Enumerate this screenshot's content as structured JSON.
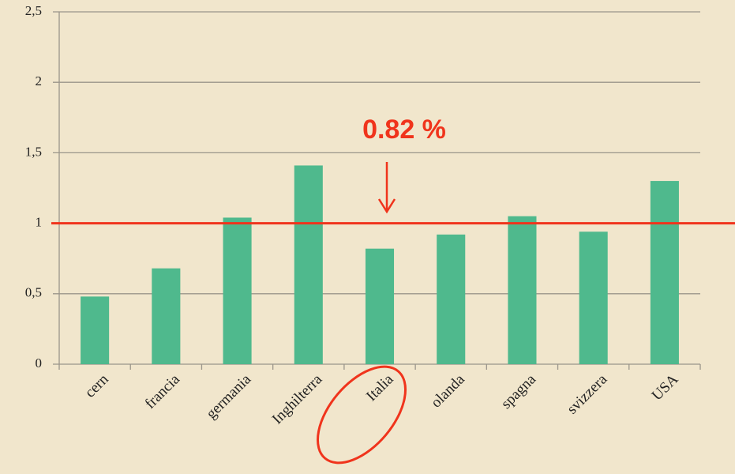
{
  "chart_data": {
    "type": "bar",
    "categories": [
      "cern",
      "francia",
      "germania",
      "Inghilterra",
      "Italia",
      "olanda",
      "spagna",
      "svizzera",
      "USA"
    ],
    "values": [
      0.48,
      0.68,
      1.04,
      1.41,
      0.82,
      0.92,
      1.05,
      0.94,
      1.3
    ],
    "color": "#4fb98d",
    "ylim": [
      0,
      2.5
    ],
    "yticks": [
      0,
      {
        "value": 0.5,
        "label": "0,5"
      },
      1,
      {
        "value": 1.5,
        "label": "1,5"
      },
      2,
      {
        "value": 2.5,
        "label": "2,5"
      }
    ],
    "grid": true,
    "reference_line": 1,
    "reference_color": "#f0341c",
    "annotation": "0.82 %"
  }
}
